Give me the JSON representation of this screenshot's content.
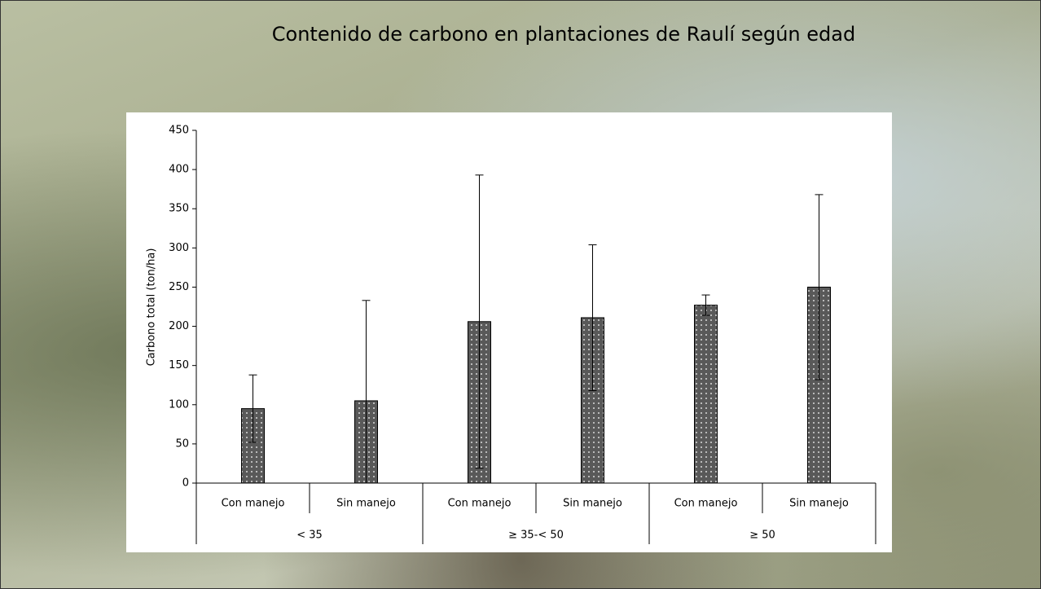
{
  "chart_data": {
    "type": "bar",
    "title": "Contenido de carbono en plantaciones de Raulí según edad",
    "y_label": "Carbono total (ton/ha)",
    "categories": [
      "Con manejo",
      "Sin manejo",
      "Con manejo",
      "Sin manejo",
      "Con manejo",
      "Sin manejo"
    ],
    "groups": [
      "< 35",
      "≥ 35-< 50",
      "≥ 50"
    ],
    "values": [
      95,
      105,
      206,
      211,
      227,
      250
    ],
    "errors": [
      43,
      128,
      187,
      93,
      13,
      118
    ],
    "color": "#595959",
    "ylim": [
      0,
      450
    ],
    "yticks": [
      0,
      50,
      100,
      150,
      200,
      250,
      300,
      350,
      400,
      450
    ]
  }
}
